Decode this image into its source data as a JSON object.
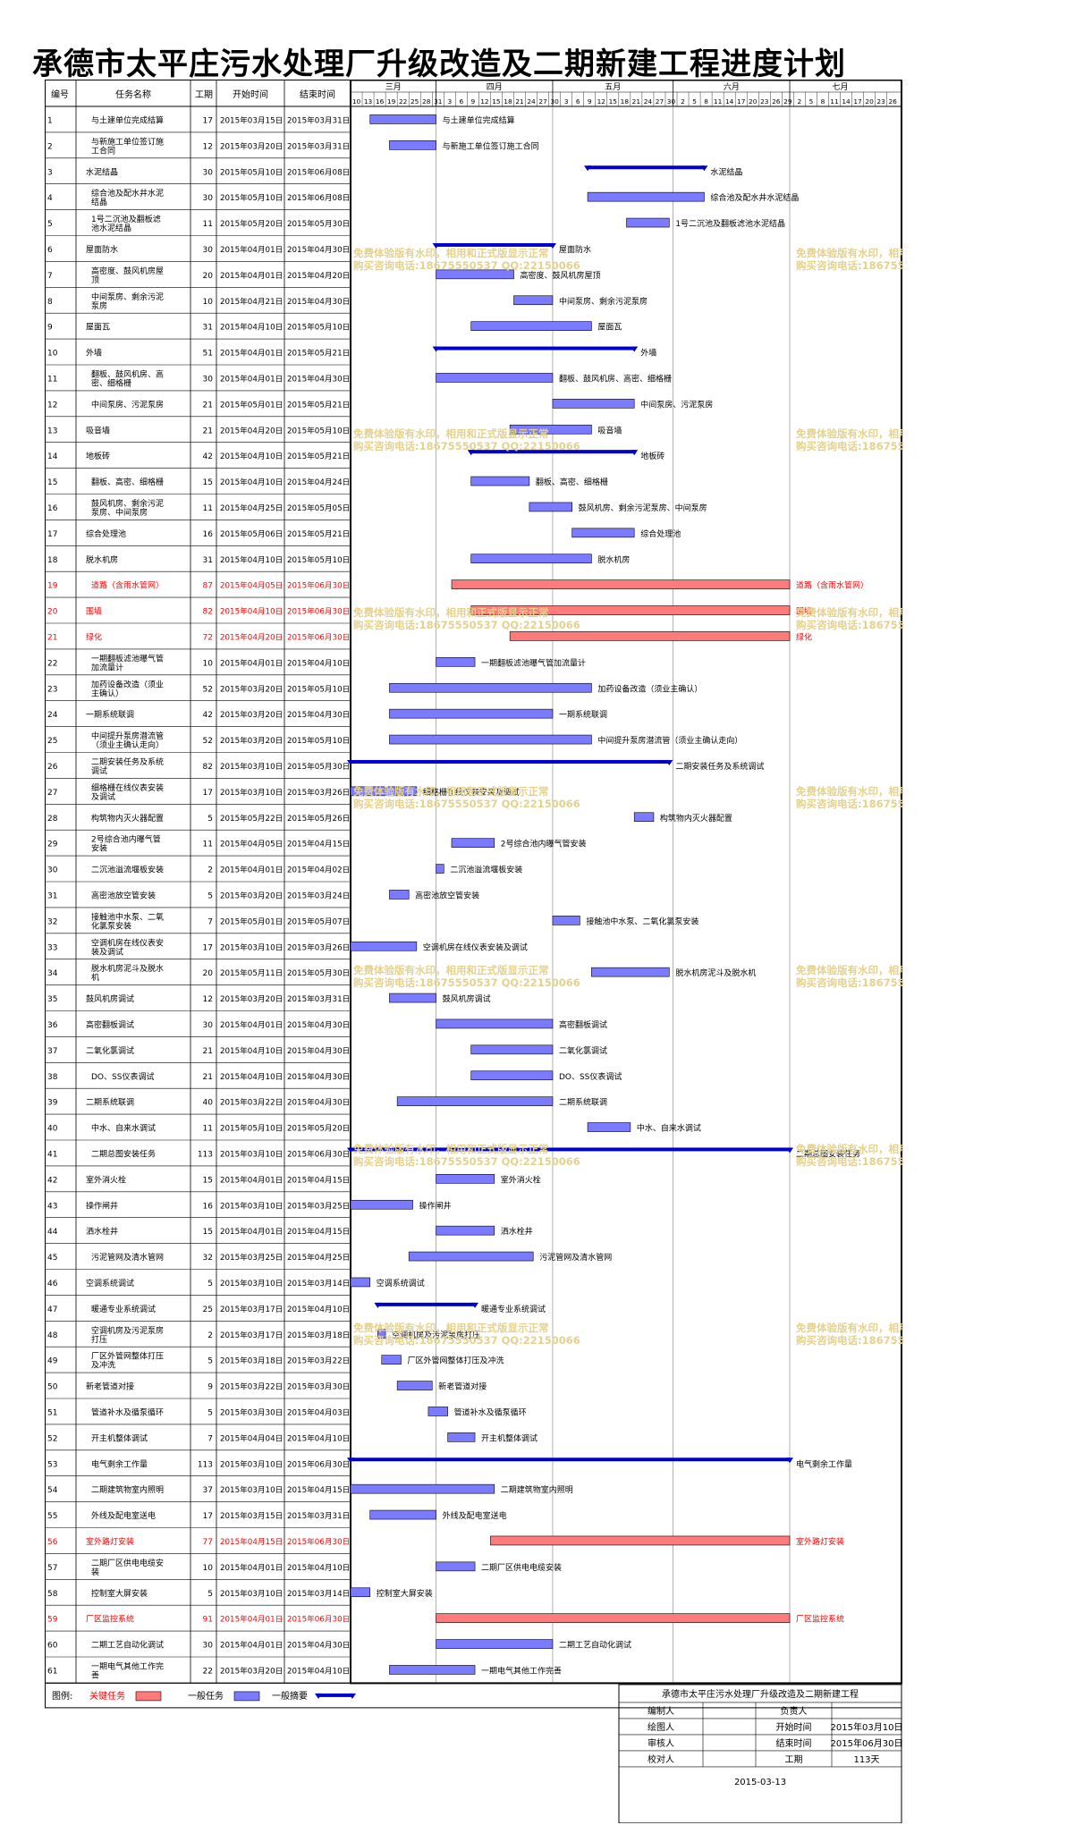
{
  "title": "承德市太平庄污水处理厂升级改造及二期新建工程进度计划",
  "table": {
    "headers": [
      "编号",
      "任务名称",
      "工期",
      "开始时间",
      "结束时间"
    ]
  },
  "timeline": {
    "months": [
      "三月",
      "四月",
      "五月",
      "六月",
      "七月"
    ],
    "day_ticks": [
      "10",
      "13",
      "16",
      "19",
      "22",
      "25",
      "28",
      "31",
      "3",
      "6",
      "9",
      "12",
      "15",
      "18",
      "21",
      "24",
      "27",
      "30",
      "3",
      "6",
      "9",
      "12",
      "15",
      "18",
      "21",
      "24",
      "27",
      "30",
      "2",
      "5",
      "8",
      "11",
      "14",
      "17",
      "20",
      "23",
      "26",
      "29",
      "2",
      "5",
      "8",
      "11",
      "14",
      "17",
      "20",
      "23",
      "26"
    ]
  },
  "colors": {
    "critical_text": "#ff0000",
    "critical_bar": "#ff7b7b",
    "normal_bar": "#7b7bff",
    "summary_bar": "#0000cc"
  },
  "chart_data": {
    "type": "gantt",
    "date_range": [
      "2015-03-10",
      "2015-07-26"
    ],
    "tasks": [
      {
        "id": "1",
        "name": "与土建单位完成结算",
        "duration": 17,
        "start": "2015年03月15日",
        "end": "2015年03月31日",
        "s": "2015-03-15",
        "e": "2015-03-31",
        "kind": "normal",
        "label": "与土建单位完成结算"
      },
      {
        "id": "2",
        "name": "与新施工单位签订施工合同",
        "duration": 12,
        "start": "2015年03月20日",
        "end": "2015年03月31日",
        "s": "2015-03-20",
        "e": "2015-03-31",
        "kind": "normal",
        "label": "与新施工单位签订施工合同"
      },
      {
        "id": "3",
        "name": "水泥结晶",
        "duration": 30,
        "start": "2015年05月10日",
        "end": "2015年06月08日",
        "s": "2015-05-10",
        "e": "2015-06-08",
        "kind": "summary",
        "label": "水泥结晶"
      },
      {
        "id": "4",
        "name": "综合池及配水井水泥结晶",
        "duration": 30,
        "start": "2015年05月10日",
        "end": "2015年06月08日",
        "s": "2015-05-10",
        "e": "2015-06-08",
        "kind": "normal",
        "label": "综合池及配水井水泥结晶"
      },
      {
        "id": "5",
        "name": "1号二沉池及翻板滤池水泥结晶",
        "duration": 11,
        "start": "2015年05月20日",
        "end": "2015年05月30日",
        "s": "2015-05-20",
        "e": "2015-05-30",
        "kind": "normal",
        "label": "1号二沉池及翻板滤池水泥结晶"
      },
      {
        "id": "6",
        "name": "屋面防水",
        "duration": 30,
        "start": "2015年04月01日",
        "end": "2015年04月30日",
        "s": "2015-04-01",
        "e": "2015-04-30",
        "kind": "summary",
        "label": "屋面防水"
      },
      {
        "id": "7",
        "name": "高密度、鼓风机房屋顶",
        "duration": 20,
        "start": "2015年04月01日",
        "end": "2015年04月20日",
        "s": "2015-04-01",
        "e": "2015-04-20",
        "kind": "normal",
        "label": "高密度、鼓风机房屋顶"
      },
      {
        "id": "8",
        "name": "中间泵房、剩余污泥泵房",
        "duration": 10,
        "start": "2015年04月21日",
        "end": "2015年04月30日",
        "s": "2015-04-21",
        "e": "2015-04-30",
        "kind": "normal",
        "label": "中间泵房、剩余污泥泵房"
      },
      {
        "id": "9",
        "name": "屋面瓦",
        "duration": 31,
        "start": "2015年04月10日",
        "end": "2015年05月10日",
        "s": "2015-04-10",
        "e": "2015-05-10",
        "kind": "normal",
        "label": "屋面瓦"
      },
      {
        "id": "10",
        "name": "外墙",
        "duration": 51,
        "start": "2015年04月01日",
        "end": "2015年05月21日",
        "s": "2015-04-01",
        "e": "2015-05-21",
        "kind": "summary",
        "label": "外墙"
      },
      {
        "id": "11",
        "name": "翻板、鼓风机房、高密、细格栅",
        "duration": 30,
        "start": "2015年04月01日",
        "end": "2015年04月30日",
        "s": "2015-04-01",
        "e": "2015-04-30",
        "kind": "normal",
        "label": "翻板、鼓风机房、高密、细格栅"
      },
      {
        "id": "12",
        "name": "中间泵房、污泥泵房",
        "duration": 21,
        "start": "2015年05月01日",
        "end": "2015年05月21日",
        "s": "2015-05-01",
        "e": "2015-05-21",
        "kind": "normal",
        "label": "中间泵房、污泥泵房"
      },
      {
        "id": "13",
        "name": "吸音墙",
        "duration": 21,
        "start": "2015年04月20日",
        "end": "2015年05月10日",
        "s": "2015-04-20",
        "e": "2015-05-10",
        "kind": "normal",
        "label": "吸音墙"
      },
      {
        "id": "14",
        "name": "地板砖",
        "duration": 42,
        "start": "2015年04月10日",
        "end": "2015年05月21日",
        "s": "2015-04-10",
        "e": "2015-05-21",
        "kind": "summary",
        "label": "地板砖"
      },
      {
        "id": "15",
        "name": "翻板、高密、细格栅",
        "duration": 15,
        "start": "2015年04月10日",
        "end": "2015年04月24日",
        "s": "2015-04-10",
        "e": "2015-04-24",
        "kind": "normal",
        "label": "翻板、高密、细格栅"
      },
      {
        "id": "16",
        "name": "鼓风机房、剩余污泥泵房、中间泵房",
        "duration": 11,
        "start": "2015年04月25日",
        "end": "2015年05月05日",
        "s": "2015-04-25",
        "e": "2015-05-05",
        "kind": "normal",
        "label": "鼓风机房、剩余污泥泵房、中间泵房"
      },
      {
        "id": "17",
        "name": "综合处理池",
        "duration": 16,
        "start": "2015年05月06日",
        "end": "2015年05月21日",
        "s": "2015-05-06",
        "e": "2015-05-21",
        "kind": "normal",
        "label": "综合处理池"
      },
      {
        "id": "18",
        "name": "脱水机房",
        "duration": 31,
        "start": "2015年04月10日",
        "end": "2015年05月10日",
        "s": "2015-04-10",
        "e": "2015-05-10",
        "kind": "normal",
        "label": "脱水机房"
      },
      {
        "id": "19",
        "name": "道路（含雨水管网）",
        "duration": 87,
        "start": "2015年04月05日",
        "end": "2015年06月30日",
        "s": "2015-04-05",
        "e": "2015-06-30",
        "kind": "critical",
        "label": "道路（含雨水管网）"
      },
      {
        "id": "20",
        "name": "围墙",
        "duration": 82,
        "start": "2015年04月10日",
        "end": "2015年06月30日",
        "s": "2015-04-10",
        "e": "2015-06-30",
        "kind": "critical",
        "label": "围墙"
      },
      {
        "id": "21",
        "name": "绿化",
        "duration": 72,
        "start": "2015年04月20日",
        "end": "2015年06月30日",
        "s": "2015-04-20",
        "e": "2015-06-30",
        "kind": "critical",
        "label": "绿化"
      },
      {
        "id": "22",
        "name": "一期翻板滤池曝气管加流量计",
        "duration": 10,
        "start": "2015年04月01日",
        "end": "2015年04月10日",
        "s": "2015-04-01",
        "e": "2015-04-10",
        "kind": "normal",
        "label": "一期翻板滤池曝气管加流量计"
      },
      {
        "id": "23",
        "name": "加药设备改造（须业主确认）",
        "duration": 52,
        "start": "2015年03月20日",
        "end": "2015年05月10日",
        "s": "2015-03-20",
        "e": "2015-05-10",
        "kind": "normal",
        "label": "加药设备改造（须业主确认）"
      },
      {
        "id": "24",
        "name": "一期系统联调",
        "duration": 42,
        "start": "2015年03月20日",
        "end": "2015年04月30日",
        "s": "2015-03-20",
        "e": "2015-04-30",
        "kind": "normal",
        "label": "一期系统联调"
      },
      {
        "id": "25",
        "name": "中间提升泵房潜流管（须业主确认走向）",
        "duration": 52,
        "start": "2015年03月20日",
        "end": "2015年05月10日",
        "s": "2015-03-20",
        "e": "2015-05-10",
        "kind": "normal",
        "label": "中间提升泵房潜流管（须业主确认走向）"
      },
      {
        "id": "26",
        "name": "二期安装任务及系统调试",
        "duration": 82,
        "start": "2015年03月10日",
        "end": "2015年05月30日",
        "s": "2015-03-10",
        "e": "2015-05-30",
        "kind": "summary",
        "label": "二期安装任务及系统调试"
      },
      {
        "id": "27",
        "name": "细格栅在线仪表安装及调试",
        "duration": 17,
        "start": "2015年03月10日",
        "end": "2015年03月26日",
        "s": "2015-03-10",
        "e": "2015-03-26",
        "kind": "normal",
        "label": "细格栅在线仪表安装及调试"
      },
      {
        "id": "28",
        "name": "构筑物内灭火器配置",
        "duration": 5,
        "start": "2015年05月22日",
        "end": "2015年05月26日",
        "s": "2015-05-22",
        "e": "2015-05-26",
        "kind": "normal",
        "label": "构筑物内灭火器配置"
      },
      {
        "id": "29",
        "name": "2号综合池内曝气管安装",
        "duration": 11,
        "start": "2015年04月05日",
        "end": "2015年04月15日",
        "s": "2015-04-05",
        "e": "2015-04-15",
        "kind": "normal",
        "label": "2号综合池内曝气管安装"
      },
      {
        "id": "30",
        "name": "二沉池溢流堰板安装",
        "duration": 2,
        "start": "2015年04月01日",
        "end": "2015年04月02日",
        "s": "2015-04-01",
        "e": "2015-04-02",
        "kind": "normal",
        "label": "二沉池溢流堰板安装"
      },
      {
        "id": "31",
        "name": "高密池放空管安装",
        "duration": 5,
        "start": "2015年03月20日",
        "end": "2015年03月24日",
        "s": "2015-03-20",
        "e": "2015-03-24",
        "kind": "normal",
        "label": "高密池放空管安装"
      },
      {
        "id": "32",
        "name": "接触池中水泵、二氧化氯泵安装",
        "duration": 7,
        "start": "2015年05月01日",
        "end": "2015年05月07日",
        "s": "2015-05-01",
        "e": "2015-05-07",
        "kind": "normal",
        "label": "接触池中水泵、二氧化氯泵安装"
      },
      {
        "id": "33",
        "name": "空调机房在线仪表安装及调试",
        "duration": 17,
        "start": "2015年03月10日",
        "end": "2015年03月26日",
        "s": "2015-03-10",
        "e": "2015-03-26",
        "kind": "normal",
        "label": "空调机房在线仪表安装及调试"
      },
      {
        "id": "34",
        "name": "脱水机房泥斗及脱水机",
        "duration": 20,
        "start": "2015年05月11日",
        "end": "2015年05月30日",
        "s": "2015-05-11",
        "e": "2015-05-30",
        "kind": "normal",
        "label": "脱水机房泥斗及脱水机"
      },
      {
        "id": "35",
        "name": "鼓风机房调试",
        "duration": 12,
        "start": "2015年03月20日",
        "end": "2015年03月31日",
        "s": "2015-03-20",
        "e": "2015-03-31",
        "kind": "normal",
        "label": "鼓风机房调试"
      },
      {
        "id": "36",
        "name": "高密翻板调试",
        "duration": 30,
        "start": "2015年04月01日",
        "end": "2015年04月30日",
        "s": "2015-04-01",
        "e": "2015-04-30",
        "kind": "normal",
        "label": "高密翻板调试"
      },
      {
        "id": "37",
        "name": "二氧化氯调试",
        "duration": 21,
        "start": "2015年04月10日",
        "end": "2015年04月30日",
        "s": "2015-04-10",
        "e": "2015-04-30",
        "kind": "normal",
        "label": "二氧化氯调试"
      },
      {
        "id": "38",
        "name": "DO、SS仪表调试",
        "duration": 21,
        "start": "2015年04月10日",
        "end": "2015年04月30日",
        "s": "2015-04-10",
        "e": "2015-04-30",
        "kind": "normal",
        "label": "DO、SS仪表调试"
      },
      {
        "id": "39",
        "name": "二期系统联调",
        "duration": 40,
        "start": "2015年03月22日",
        "end": "2015年04月30日",
        "s": "2015-03-22",
        "e": "2015-04-30",
        "kind": "normal",
        "label": "二期系统联调"
      },
      {
        "id": "40",
        "name": "中水、自来水调试",
        "duration": 11,
        "start": "2015年05月10日",
        "end": "2015年05月20日",
        "s": "2015-05-10",
        "e": "2015-05-20",
        "kind": "normal",
        "label": "中水、自来水调试"
      },
      {
        "id": "41",
        "name": "二期总图安装任务",
        "duration": 113,
        "start": "2015年03月10日",
        "end": "2015年06月30日",
        "s": "2015-03-10",
        "e": "2015-06-30",
        "kind": "summary",
        "label": "二期总图安装任务"
      },
      {
        "id": "42",
        "name": "室外消火栓",
        "duration": 15,
        "start": "2015年04月01日",
        "end": "2015年04月15日",
        "s": "2015-04-01",
        "e": "2015-04-15",
        "kind": "normal",
        "label": "室外消火栓"
      },
      {
        "id": "43",
        "name": "操作闸井",
        "duration": 16,
        "start": "2015年03月10日",
        "end": "2015年03月25日",
        "s": "2015-03-10",
        "e": "2015-03-25",
        "kind": "normal",
        "label": "操作闸井"
      },
      {
        "id": "44",
        "name": "洒水栓井",
        "duration": 15,
        "start": "2015年04月01日",
        "end": "2015年04月15日",
        "s": "2015-04-01",
        "e": "2015-04-15",
        "kind": "normal",
        "label": "洒水栓井"
      },
      {
        "id": "45",
        "name": "污泥管网及清水管网",
        "duration": 32,
        "start": "2015年03月25日",
        "end": "2015年04月25日",
        "s": "2015-03-25",
        "e": "2015-04-25",
        "kind": "normal",
        "label": "污泥管网及清水管网"
      },
      {
        "id": "46",
        "name": "空调系统调试",
        "duration": 5,
        "start": "2015年03月10日",
        "end": "2015年03月14日",
        "s": "2015-03-10",
        "e": "2015-03-14",
        "kind": "normal",
        "label": "空调系统调试"
      },
      {
        "id": "47",
        "name": "暖通专业系统调试",
        "duration": 25,
        "start": "2015年03月17日",
        "end": "2015年04月10日",
        "s": "2015-03-17",
        "e": "2015-04-10",
        "kind": "summary",
        "label": "暖通专业系统调试"
      },
      {
        "id": "48",
        "name": "空调机房及污泥泵房打压",
        "duration": 2,
        "start": "2015年03月17日",
        "end": "2015年03月18日",
        "s": "2015-03-17",
        "e": "2015-03-18",
        "kind": "normal",
        "label": "空调机房及污泥泵房打压"
      },
      {
        "id": "49",
        "name": "厂区外管网整体打压及冲洗",
        "duration": 5,
        "start": "2015年03月18日",
        "end": "2015年03月22日",
        "s": "2015-03-18",
        "e": "2015-03-22",
        "kind": "normal",
        "label": "厂区外管网整体打压及冲洗"
      },
      {
        "id": "50",
        "name": "新老管道对接",
        "duration": 9,
        "start": "2015年03月22日",
        "end": "2015年03月30日",
        "s": "2015-03-22",
        "e": "2015-03-30",
        "kind": "normal",
        "label": "新老管道对接"
      },
      {
        "id": "51",
        "name": "管道补水及循泵循环",
        "duration": 5,
        "start": "2015年03月30日",
        "end": "2015年04月03日",
        "s": "2015-03-30",
        "e": "2015-04-03",
        "kind": "normal",
        "label": "管道补水及循泵循环"
      },
      {
        "id": "52",
        "name": "开主机整体调试",
        "duration": 7,
        "start": "2015年04月04日",
        "end": "2015年04月10日",
        "s": "2015-04-04",
        "e": "2015-04-10",
        "kind": "normal",
        "label": "开主机整体调试"
      },
      {
        "id": "53",
        "name": "电气剩余工作量",
        "duration": 113,
        "start": "2015年03月10日",
        "end": "2015年06月30日",
        "s": "2015-03-10",
        "e": "2015-06-30",
        "kind": "summary",
        "label": "电气剩余工作量"
      },
      {
        "id": "54",
        "name": "二期建筑物室内照明",
        "duration": 37,
        "start": "2015年03月10日",
        "end": "2015年04月15日",
        "s": "2015-03-10",
        "e": "2015-04-15",
        "kind": "normal",
        "label": "二期建筑物室内照明"
      },
      {
        "id": "55",
        "name": "外线及配电室送电",
        "duration": 17,
        "start": "2015年03月15日",
        "end": "2015年03月31日",
        "s": "2015-03-15",
        "e": "2015-03-31",
        "kind": "normal",
        "label": "外线及配电室送电"
      },
      {
        "id": "56",
        "name": "室外路灯安装",
        "duration": 77,
        "start": "2015年04月15日",
        "end": "2015年06月30日",
        "s": "2015-04-15",
        "e": "2015-06-30",
        "kind": "critical",
        "label": "室外路灯安装"
      },
      {
        "id": "57",
        "name": "二期厂区供电电缆安装",
        "duration": 10,
        "start": "2015年04月01日",
        "end": "2015年04月10日",
        "s": "2015-04-01",
        "e": "2015-04-10",
        "kind": "normal",
        "label": "二期厂区供电电缆安装"
      },
      {
        "id": "58",
        "name": "控制室大屏安装",
        "duration": 5,
        "start": "2015年03月10日",
        "end": "2015年03月14日",
        "s": "2015-03-10",
        "e": "2015-03-14",
        "kind": "normal",
        "label": "控制室大屏安装"
      },
      {
        "id": "59",
        "name": "厂区监控系统",
        "duration": 91,
        "start": "2015年04月01日",
        "end": "2015年06月30日",
        "s": "2015-04-01",
        "e": "2015-06-30",
        "kind": "critical",
        "label": "厂区监控系统"
      },
      {
        "id": "60",
        "name": "二期工艺自动化调试",
        "duration": 30,
        "start": "2015年04月01日",
        "end": "2015年04月30日",
        "s": "2015-04-01",
        "e": "2015-04-30",
        "kind": "normal",
        "label": "二期工艺自动化调试"
      },
      {
        "id": "61",
        "name": "一期电气其他工作完善",
        "duration": 22,
        "start": "2015年03月20日",
        "end": "2015年04月10日",
        "s": "2015-03-20",
        "e": "2015-04-10",
        "kind": "normal",
        "label": "一期电气其他工作完善"
      }
    ]
  },
  "legend": {
    "title": "图例:",
    "items": [
      {
        "text": "关键任务",
        "kind": "critical"
      },
      {
        "text": "一般任务",
        "kind": "normal"
      },
      {
        "text": "一般摘要",
        "kind": "summary"
      }
    ]
  },
  "footer": {
    "title": "承德市太平庄污水处理厂升级改造及二期新建工程",
    "rows": [
      [
        "编制人",
        "",
        "负责人",
        ""
      ],
      [
        "绘图人",
        "",
        "开始时间",
        "2015年03月10日"
      ],
      [
        "审核人",
        "",
        "结束时间",
        "2015年06月30日"
      ],
      [
        "校对人",
        "",
        "工期",
        "113天"
      ]
    ],
    "date": "2015-03-13"
  },
  "watermark": {
    "line1": "免费体验版有水印，相用和正式版显示正常",
    "line2": "购买咨询电话:18675550537 QQ:22150066"
  }
}
